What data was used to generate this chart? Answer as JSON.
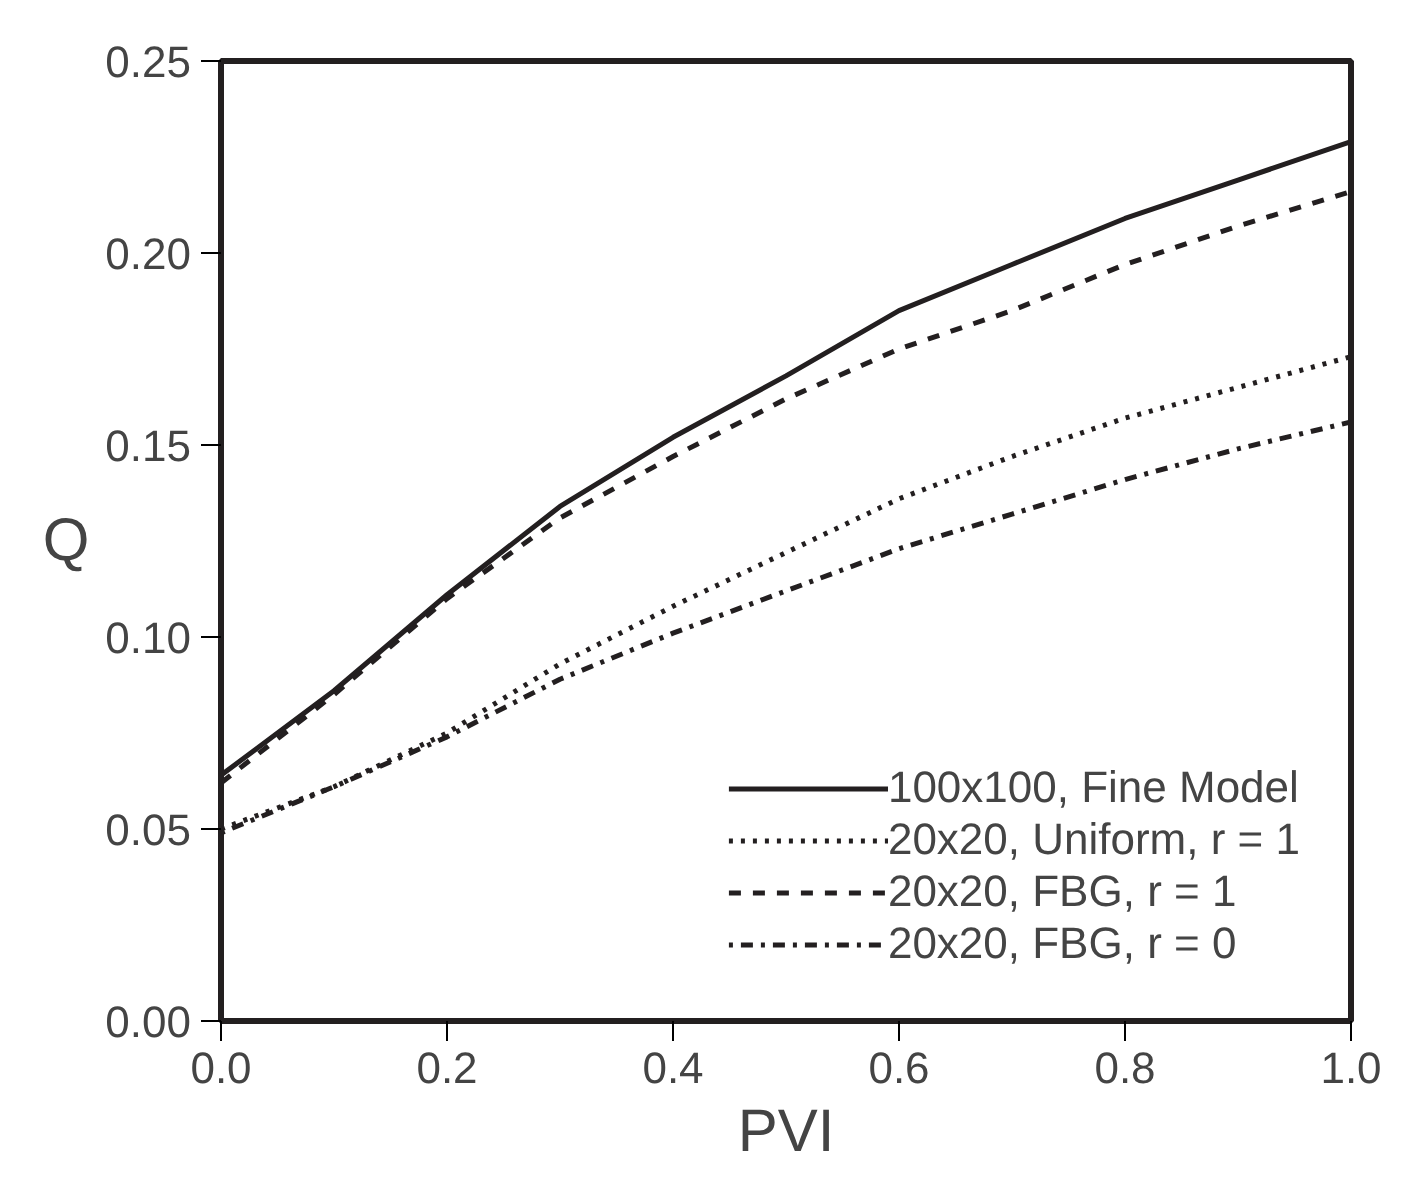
{
  "chart_data": {
    "type": "line",
    "xlabel": "PVI",
    "ylabel": "Q",
    "x": [
      0,
      0.1,
      0.2,
      0.3,
      0.4,
      0.5,
      0.6,
      0.7,
      0.8,
      0.9,
      1.0
    ],
    "series": [
      {
        "name": "100x100, Fine Model",
        "color": "#231f20",
        "line_style": "solid",
        "values": [
          0.064,
          0.086,
          0.111,
          0.134,
          0.152,
          0.168,
          0.185,
          0.197,
          0.209,
          0.219,
          0.229
        ]
      },
      {
        "name": "20x20, Uniform, r = 1",
        "color": "#231f20",
        "line_style": "dotted",
        "values": [
          0.05,
          0.061,
          0.075,
          0.093,
          0.108,
          0.122,
          0.136,
          0.147,
          0.157,
          0.165,
          0.173
        ]
      },
      {
        "name": "20x20, FBG, r = 1",
        "color": "#231f20",
        "line_style": "dashed",
        "values": [
          0.062,
          0.085,
          0.11,
          0.131,
          0.147,
          0.162,
          0.175,
          0.185,
          0.197,
          0.207,
          0.216
        ]
      },
      {
        "name": "20x20, FBG, r = 0",
        "color": "#231f20",
        "line_style": "dashdot",
        "values": [
          0.049,
          0.061,
          0.074,
          0.089,
          0.101,
          0.112,
          0.123,
          0.132,
          0.141,
          0.149,
          0.156
        ]
      }
    ],
    "xlim": [
      0,
      1.0
    ],
    "ylim": [
      0,
      0.25
    ],
    "xticks": [
      {
        "value": 0,
        "label": "0.0"
      },
      0.2,
      0.4,
      0.6,
      0.8,
      {
        "value": 1.0,
        "label": "1.0"
      }
    ],
    "yticks": [
      {
        "value": 0,
        "label": "0.00"
      },
      0.05,
      {
        "value": 0.1,
        "label": "0.10"
      },
      0.15,
      {
        "value": 0.2,
        "label": "0.20"
      },
      0.25
    ],
    "grid": false,
    "legend": "bottom right"
  }
}
